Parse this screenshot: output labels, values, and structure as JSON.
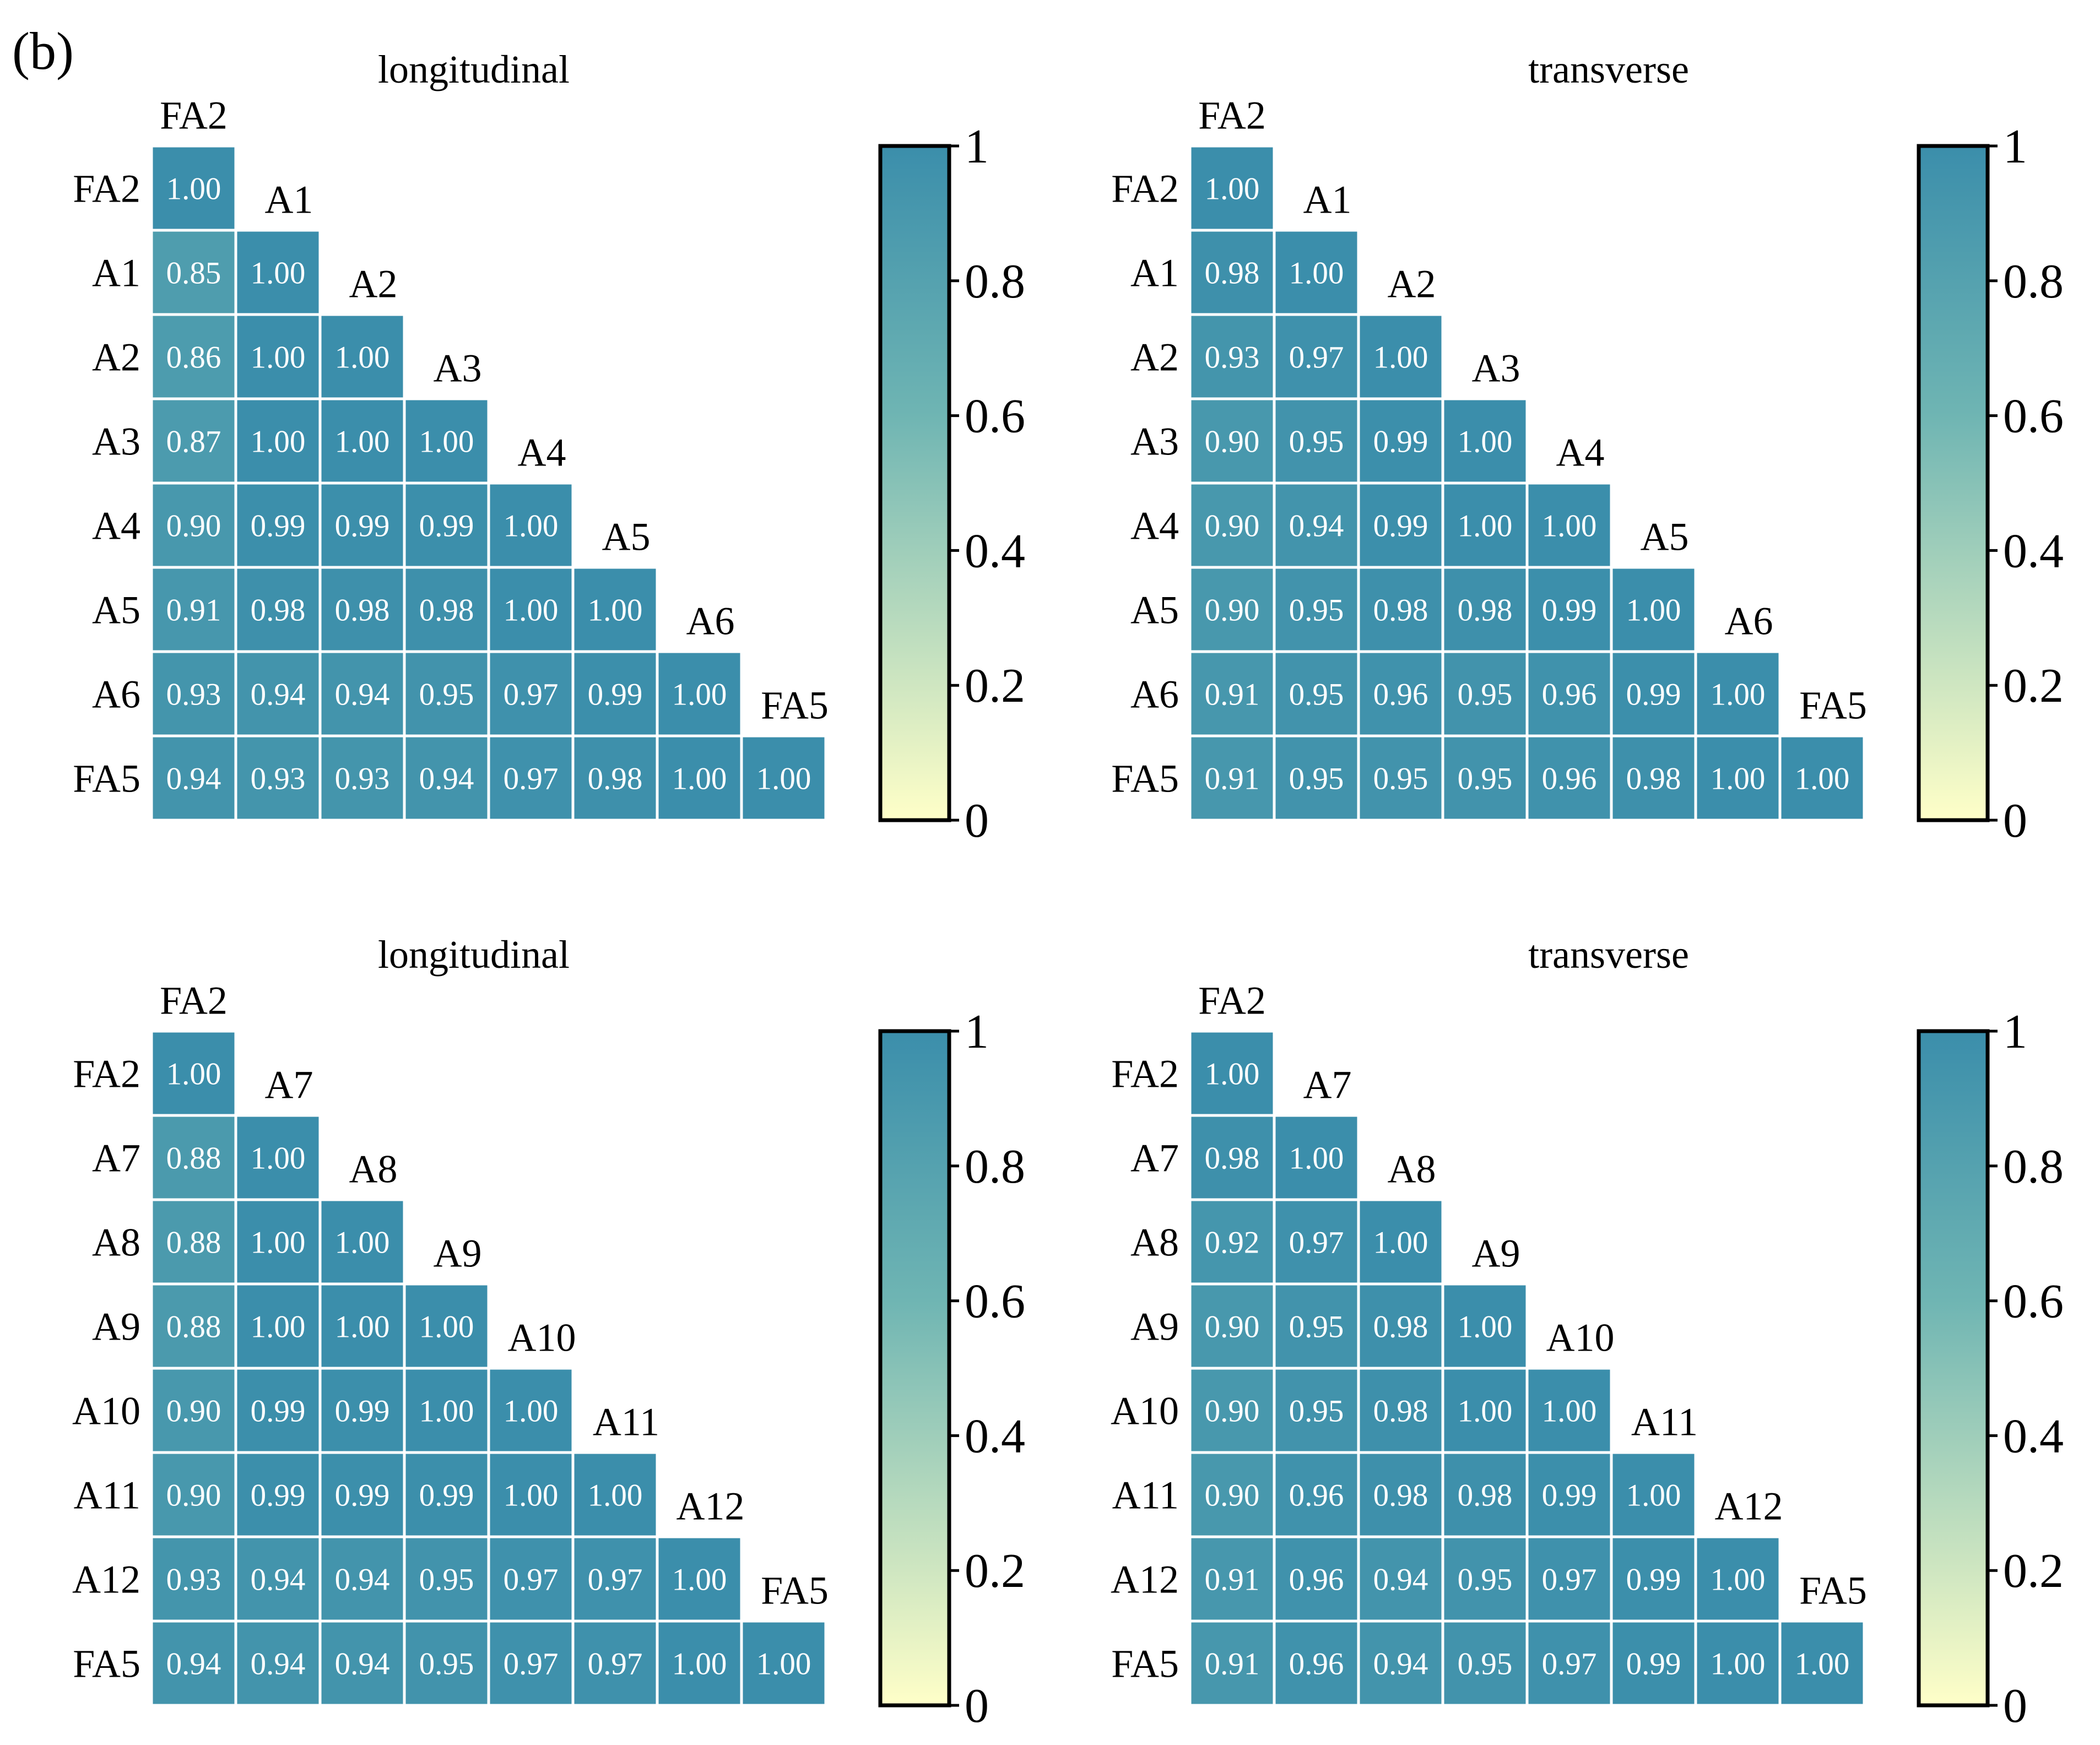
{
  "panel_label": "(b)",
  "colors": {
    "low": "#ffffc8",
    "mid": "#6fb5b3",
    "high": "#3b8eab",
    "cell_text": "#ffffff",
    "grid_line": "#ffffff",
    "axis_text": "#000000"
  },
  "chart_data": [
    {
      "type": "heatmap",
      "title": "longitudinal",
      "labels": [
        "FA2",
        "A1",
        "A2",
        "A3",
        "A4",
        "A5",
        "A6",
        "FA5"
      ],
      "matrix": [
        [
          1.0
        ],
        [
          0.85,
          1.0
        ],
        [
          0.86,
          1.0,
          1.0
        ],
        [
          0.87,
          1.0,
          1.0,
          1.0
        ],
        [
          0.9,
          0.99,
          0.99,
          0.99,
          1.0
        ],
        [
          0.91,
          0.98,
          0.98,
          0.98,
          1.0,
          1.0
        ],
        [
          0.93,
          0.94,
          0.94,
          0.95,
          0.97,
          0.99,
          1.0
        ],
        [
          0.94,
          0.93,
          0.93,
          0.94,
          0.97,
          0.98,
          1.0,
          1.0
        ]
      ],
      "colorbar": {
        "range": [
          0,
          1
        ],
        "ticks": [
          "0",
          "0.2",
          "0.4",
          "0.6",
          "0.8",
          "1"
        ]
      }
    },
    {
      "type": "heatmap",
      "title": "transverse",
      "labels": [
        "FA2",
        "A1",
        "A2",
        "A3",
        "A4",
        "A5",
        "A6",
        "FA5"
      ],
      "matrix": [
        [
          1.0
        ],
        [
          0.98,
          1.0
        ],
        [
          0.93,
          0.97,
          1.0
        ],
        [
          0.9,
          0.95,
          0.99,
          1.0
        ],
        [
          0.9,
          0.94,
          0.99,
          1.0,
          1.0
        ],
        [
          0.9,
          0.95,
          0.98,
          0.98,
          0.99,
          1.0
        ],
        [
          0.91,
          0.95,
          0.96,
          0.95,
          0.96,
          0.99,
          1.0
        ],
        [
          0.91,
          0.95,
          0.95,
          0.95,
          0.96,
          0.98,
          1.0,
          1.0
        ]
      ],
      "colorbar": {
        "range": [
          0,
          1
        ],
        "ticks": [
          "0",
          "0.2",
          "0.4",
          "0.6",
          "0.8",
          "1"
        ]
      }
    },
    {
      "type": "heatmap",
      "title": "longitudinal",
      "labels": [
        "FA2",
        "A7",
        "A8",
        "A9",
        "A10",
        "A11",
        "A12",
        "FA5"
      ],
      "matrix": [
        [
          1.0
        ],
        [
          0.88,
          1.0
        ],
        [
          0.88,
          1.0,
          1.0
        ],
        [
          0.88,
          1.0,
          1.0,
          1.0
        ],
        [
          0.9,
          0.99,
          0.99,
          1.0,
          1.0
        ],
        [
          0.9,
          0.99,
          0.99,
          0.99,
          1.0,
          1.0
        ],
        [
          0.93,
          0.94,
          0.94,
          0.95,
          0.97,
          0.97,
          1.0
        ],
        [
          0.94,
          0.94,
          0.94,
          0.95,
          0.97,
          0.97,
          1.0,
          1.0
        ]
      ],
      "colorbar": {
        "range": [
          0,
          1
        ],
        "ticks": [
          "0",
          "0.2",
          "0.4",
          "0.6",
          "0.8",
          "1"
        ]
      }
    },
    {
      "type": "heatmap",
      "title": "transverse",
      "labels": [
        "FA2",
        "A7",
        "A8",
        "A9",
        "A10",
        "A11",
        "A12",
        "FA5"
      ],
      "matrix": [
        [
          1.0
        ],
        [
          0.98,
          1.0
        ],
        [
          0.92,
          0.97,
          1.0
        ],
        [
          0.9,
          0.95,
          0.98,
          1.0
        ],
        [
          0.9,
          0.95,
          0.98,
          1.0,
          1.0
        ],
        [
          0.9,
          0.96,
          0.98,
          0.98,
          0.99,
          1.0
        ],
        [
          0.91,
          0.96,
          0.94,
          0.95,
          0.97,
          0.99,
          1.0
        ],
        [
          0.91,
          0.96,
          0.94,
          0.95,
          0.97,
          0.99,
          1.0,
          1.0
        ]
      ],
      "colorbar": {
        "range": [
          0,
          1
        ],
        "ticks": [
          "0",
          "0.2",
          "0.4",
          "0.6",
          "0.8",
          "1"
        ]
      }
    }
  ]
}
